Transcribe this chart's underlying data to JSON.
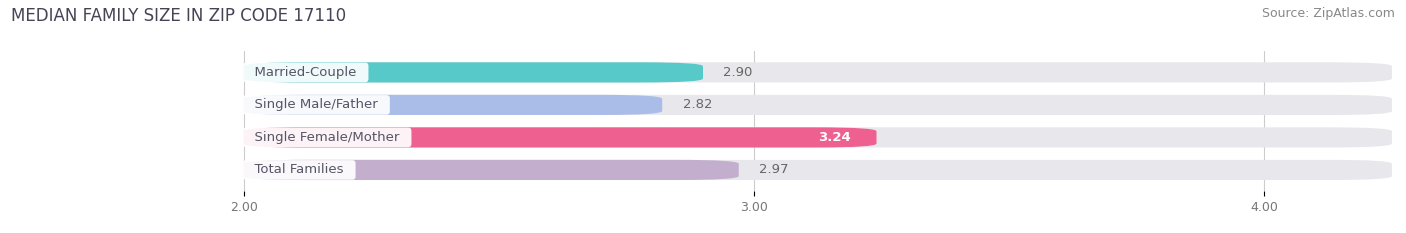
{
  "title": "MEDIAN FAMILY SIZE IN ZIP CODE 17110",
  "source": "Source: ZipAtlas.com",
  "categories": [
    "Married-Couple",
    "Single Male/Father",
    "Single Female/Mother",
    "Total Families"
  ],
  "values": [
    2.9,
    2.82,
    3.24,
    2.97
  ],
  "bar_colors": [
    "#57C9C9",
    "#AABDE8",
    "#EE6090",
    "#C4AECE"
  ],
  "bar_bg_color": "#E8E8EC",
  "xlim": [
    1.55,
    4.25
  ],
  "xstart": 2.0,
  "xticks": [
    2.0,
    3.0,
    4.0
  ],
  "xtick_labels": [
    "2.00",
    "3.00",
    "4.00"
  ],
  "label_fontsize": 9.5,
  "value_fontsize": 9.5,
  "title_fontsize": 12,
  "source_fontsize": 9,
  "bar_height": 0.62,
  "background_color": "#FFFFFF",
  "grid_color": "#CCCCCC",
  "text_color": "#555566",
  "value_color_normal": "#666666",
  "value_color_inside": "#FFFFFF"
}
